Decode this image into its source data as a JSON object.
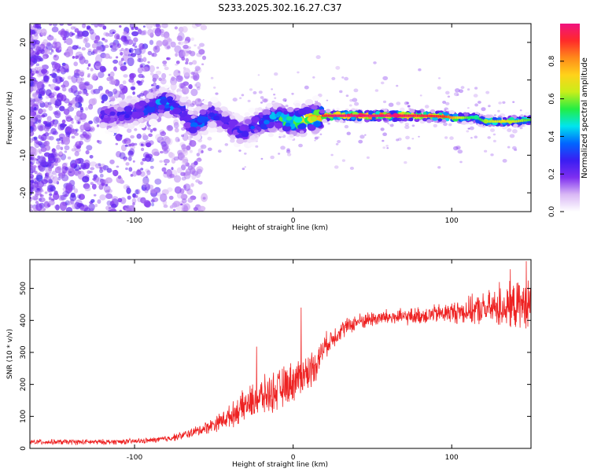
{
  "figure_title": "S233.2025.302.16.27.C37",
  "chart_data": [
    {
      "type": "heatmap",
      "name": "spectrogram",
      "xlabel": "Height of straight line (km)",
      "ylabel": "Frequency (Hz)",
      "xlim": [
        -166,
        150
      ],
      "ylim": [
        -25,
        25
      ],
      "x_ticks": [
        -100,
        0,
        100
      ],
      "y_ticks": [
        -20,
        -10,
        0,
        10,
        20
      ],
      "colorbar": {
        "label": "Normalized spectral amplitude",
        "range": [
          0,
          1
        ],
        "ticks": [
          "0.0",
          "0.2",
          "0.4",
          "0.6",
          "0.8"
        ],
        "colormap": [
          "#ffffff",
          "#d9b8f5",
          "#7e2ff0",
          "#3a1df2",
          "#0066ff",
          "#00e5ee",
          "#22ee44",
          "#c8ee1a",
          "#ffd21a",
          "#ff8a1a",
          "#ff2a2a",
          "#f0127f"
        ]
      },
      "dominant_ridge": {
        "description": "frequency of peak spectral amplitude vs height",
        "x": [
          -115,
          -105,
          -95,
          -88,
          -82,
          -75,
          -70,
          -64,
          -58,
          -52,
          -48,
          -44,
          -40,
          -36,
          -32,
          -28,
          -24,
          -20,
          -16,
          -12,
          -8,
          -4,
          0,
          5,
          10,
          14,
          18,
          25,
          40,
          60,
          80,
          95,
          100,
          105,
          110,
          115,
          120,
          130,
          140,
          150
        ],
        "y": [
          0.5,
          1,
          2,
          3,
          4,
          3,
          2,
          -2,
          -1,
          1,
          0,
          -1,
          -2,
          -3,
          -4,
          -3,
          -2,
          -1,
          -1,
          0,
          0,
          -1,
          -1,
          -1,
          0,
          0,
          0.5,
          0.5,
          0.5,
          0.5,
          0.5,
          0.3,
          0,
          0,
          0,
          0,
          -1,
          -1,
          -1,
          -0.5
        ],
        "amplitude": [
          0.25,
          0.3,
          0.35,
          0.4,
          0.45,
          0.4,
          0.3,
          0.35,
          0.4,
          0.35,
          0.3,
          0.3,
          0.25,
          0.3,
          0.3,
          0.35,
          0.35,
          0.4,
          0.45,
          0.5,
          0.55,
          0.6,
          0.7,
          0.75,
          0.8,
          0.85,
          0.9,
          1.0,
          1.0,
          1.0,
          0.95,
          0.9,
          0.8,
          0.65,
          0.55,
          0.5,
          0.6,
          0.7,
          0.65,
          0.55
        ]
      }
    },
    {
      "type": "line",
      "name": "snr",
      "xlabel": "Height of straight line (km)",
      "ylabel": "SNR (10 * v/v)",
      "xlim": [
        -166,
        150
      ],
      "ylim": [
        0,
        590
      ],
      "x_ticks": [
        -100,
        0,
        100
      ],
      "y_ticks": [
        0,
        100,
        200,
        300,
        400,
        500
      ],
      "color": "#ee2222",
      "x": [
        -166,
        -140,
        -120,
        -100,
        -90,
        -80,
        -70,
        -60,
        -50,
        -40,
        -30,
        -20,
        -10,
        0,
        10,
        15,
        20,
        30,
        40,
        50,
        60,
        70,
        80,
        90,
        100,
        110,
        120,
        130,
        140,
        150
      ],
      "y": [
        20,
        20,
        20,
        22,
        25,
        30,
        40,
        55,
        75,
        100,
        135,
        160,
        180,
        210,
        240,
        270,
        320,
        370,
        395,
        405,
        410,
        410,
        415,
        420,
        425,
        430,
        435,
        440,
        445,
        450
      ],
      "noise_amplitude": [
        10,
        10,
        10,
        10,
        10,
        12,
        15,
        20,
        28,
        40,
        60,
        70,
        75,
        75,
        70,
        60,
        45,
        35,
        30,
        30,
        30,
        30,
        32,
        35,
        40,
        50,
        60,
        75,
        85,
        90
      ],
      "spikes": [
        {
          "x": -23,
          "y": 318
        },
        {
          "x": 5,
          "y": 440
        },
        {
          "x": 130,
          "y": 520
        },
        {
          "x": 137,
          "y": 560
        },
        {
          "x": 147,
          "y": 585
        }
      ]
    }
  ]
}
